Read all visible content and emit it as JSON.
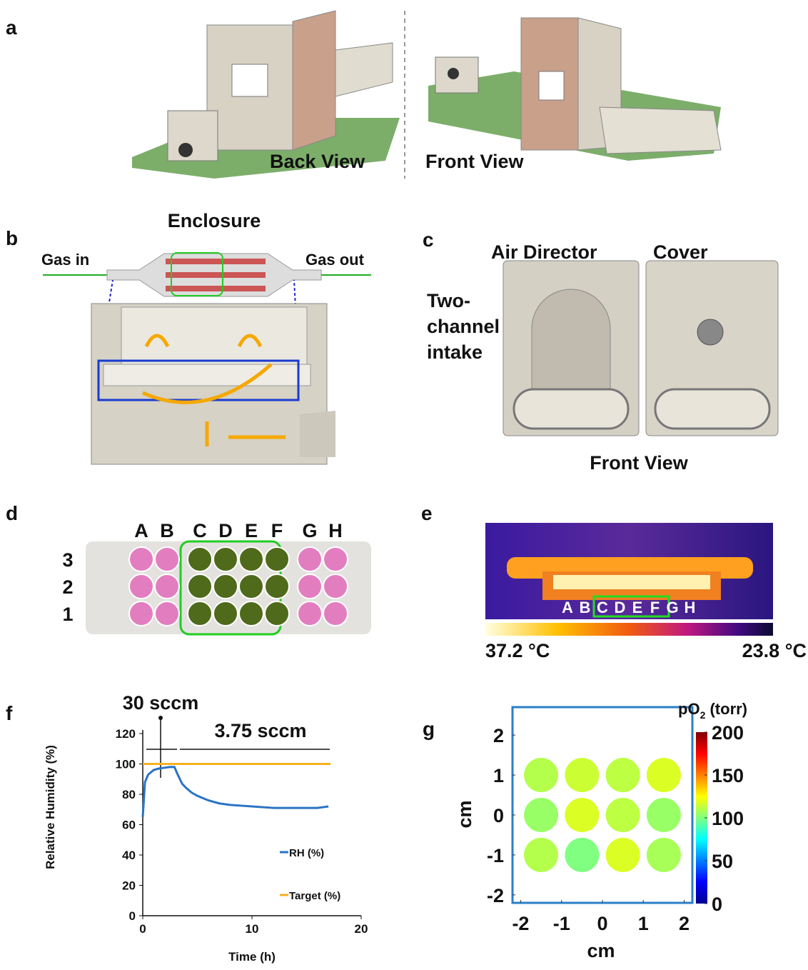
{
  "panels": {
    "a": {
      "label": "a",
      "back": "Back View",
      "front": "Front View"
    },
    "b": {
      "label": "b",
      "title": "Enclosure",
      "gas_in": "Gas in",
      "gas_out": "Gas out"
    },
    "c": {
      "label": "c",
      "air_director": "Air Director",
      "cover": "Cover",
      "intake": [
        "Two-",
        "channel",
        "intake"
      ],
      "view": "Front View"
    },
    "d": {
      "label": "d",
      "columns": [
        "A",
        "B",
        "C",
        "D",
        "E",
        "F",
        "G",
        "H"
      ],
      "rows": [
        "3",
        "2",
        "1"
      ]
    },
    "e": {
      "label": "e",
      "columns": [
        "A",
        "B",
        "C",
        "D",
        "E",
        "F",
        "G",
        "H"
      ],
      "scale_max": "37.2 °C",
      "scale_min": "23.8 °C"
    }
  },
  "chart_data": [
    {
      "type": "line",
      "label": "f",
      "ylabel": "Relative Humidity (%)",
      "xlabel": "Time (h)",
      "xlim": [
        0,
        20
      ],
      "xticks": [
        0,
        10,
        20
      ],
      "ylim": [
        0,
        120
      ],
      "yticks": [
        0,
        20,
        40,
        60,
        80,
        100,
        120
      ],
      "annotations": [
        "30 sccm",
        "3.75 sccm"
      ],
      "series": [
        {
          "name": "RH (%)",
          "color": "#2a73c4",
          "x": [
            0,
            0.2,
            0.5,
            1,
            1.5,
            2,
            2.5,
            2.9,
            3.2,
            3.6,
            4,
            4.5,
            5,
            6,
            7,
            8,
            9,
            10,
            11,
            12,
            13,
            14,
            15,
            16,
            16.5,
            17
          ],
          "values": [
            65,
            88,
            93,
            96,
            97,
            97.5,
            98,
            98,
            93,
            87,
            84,
            81,
            79,
            76,
            74,
            73,
            72.5,
            72,
            71.5,
            71,
            71,
            71,
            71,
            71,
            71.5,
            72
          ]
        },
        {
          "name": "Target (%)",
          "color": "#f5b120",
          "x": [
            0,
            17.2
          ],
          "values": [
            100,
            100
          ]
        }
      ]
    },
    {
      "type": "heatmap",
      "label": "g",
      "xlabel": "cm",
      "ylabel": "cm",
      "colorbar_label": [
        "pO",
        "2",
        " (torr)"
      ],
      "xlim": [
        -2.2,
        2.2
      ],
      "xticks": [
        -2,
        -1,
        0,
        1,
        2
      ],
      "ylim": [
        -2.2,
        2.7
      ],
      "yticks": [
        -2,
        -1,
        0,
        1,
        2
      ],
      "x": [
        -1.5,
        -0.5,
        0.5,
        1.5
      ],
      "y": [
        1,
        0,
        -1
      ],
      "values": [
        [
          110,
          115,
          112,
          118
        ],
        [
          105,
          118,
          112,
          105
        ],
        [
          110,
          100,
          118,
          108
        ]
      ],
      "clim": [
        0,
        200
      ],
      "cticks": [
        0,
        50,
        100,
        150,
        200
      ]
    }
  ]
}
